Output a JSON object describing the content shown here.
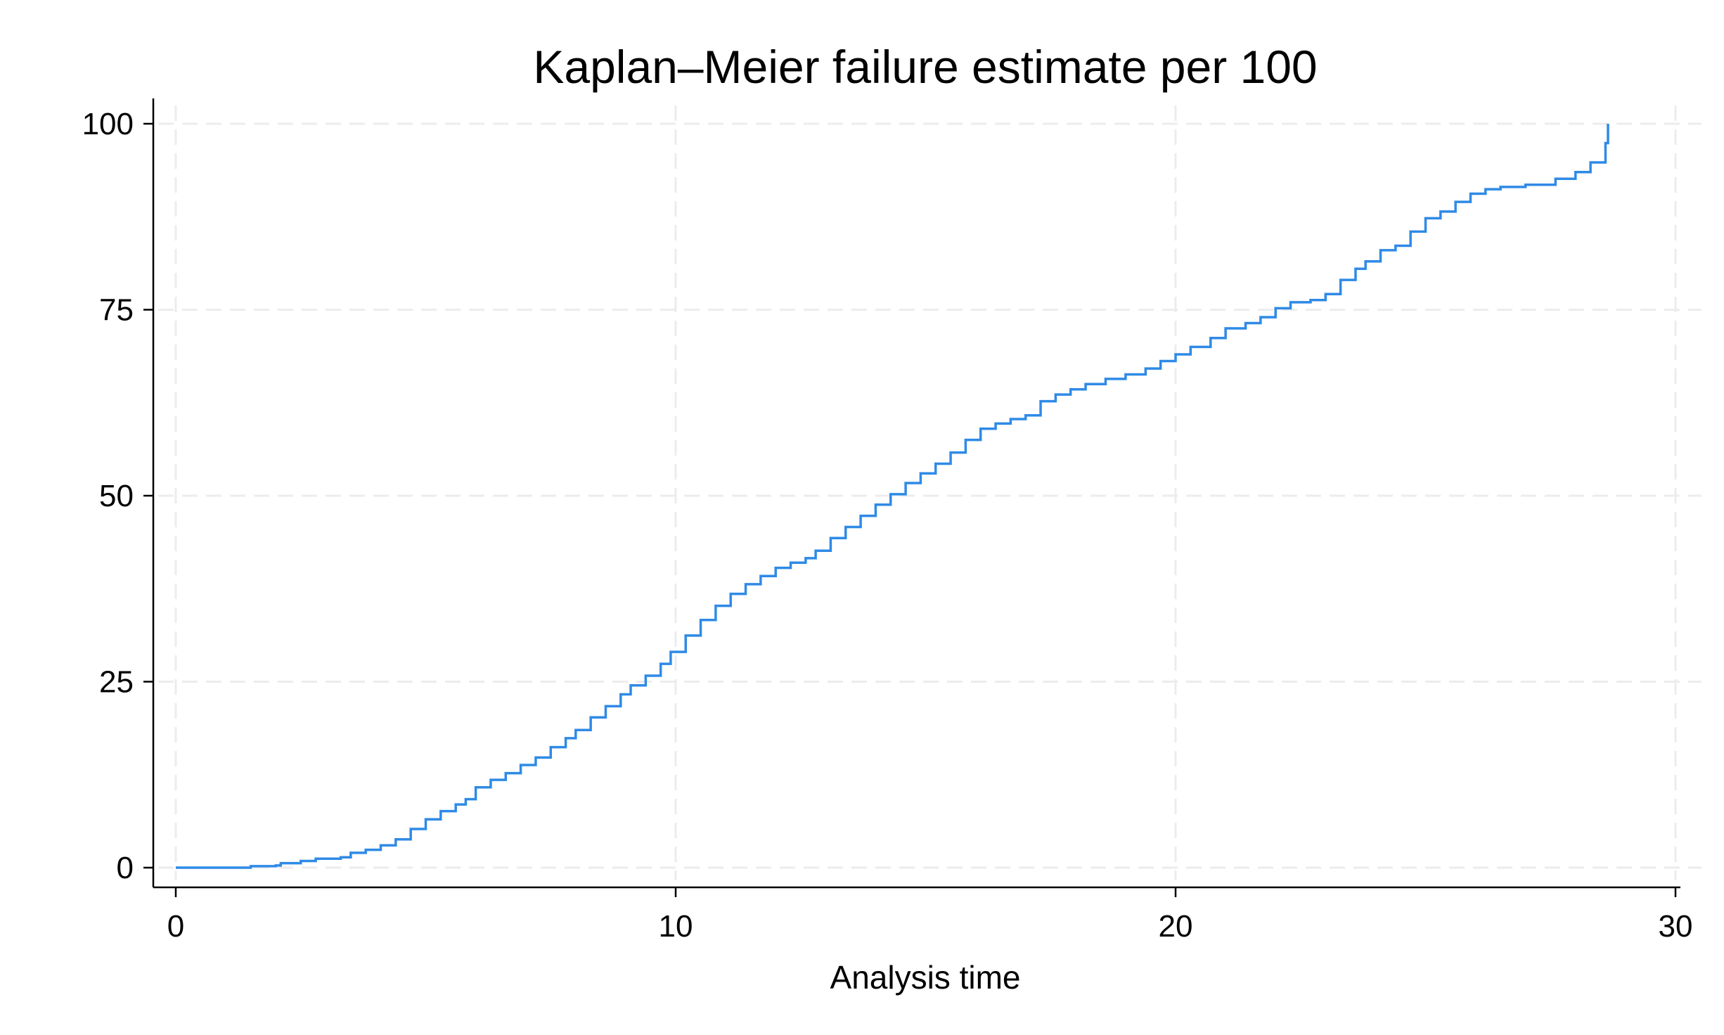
{
  "chart_data": {
    "type": "line",
    "title": "Kaplan–Meier failure estimate per 100",
    "xlabel": "Analysis time",
    "ylabel": "",
    "xlim": [
      0,
      30
    ],
    "ylim": [
      0,
      100
    ],
    "xticks": [
      0,
      10,
      20,
      30
    ],
    "yticks": [
      0,
      25,
      50,
      75,
      100
    ],
    "grid": true,
    "step": true,
    "colors": {
      "series": "#2f8ae6"
    },
    "series": [
      {
        "values": [
          [
            0,
            0
          ],
          [
            1.4,
            0
          ],
          [
            1.5,
            0.2
          ],
          [
            2.0,
            0.3
          ],
          [
            2.1,
            0.6
          ],
          [
            2.5,
            0.9
          ],
          [
            2.8,
            1.2
          ],
          [
            3.3,
            1.4
          ],
          [
            3.5,
            2.0
          ],
          [
            3.8,
            2.4
          ],
          [
            4.1,
            3.0
          ],
          [
            4.4,
            3.8
          ],
          [
            4.7,
            5.2
          ],
          [
            5.0,
            6.5
          ],
          [
            5.3,
            7.6
          ],
          [
            5.6,
            8.5
          ],
          [
            5.8,
            9.2
          ],
          [
            6.0,
            10.8
          ],
          [
            6.3,
            11.8
          ],
          [
            6.6,
            12.7
          ],
          [
            6.9,
            13.8
          ],
          [
            7.2,
            14.8
          ],
          [
            7.5,
            16.2
          ],
          [
            7.8,
            17.4
          ],
          [
            8.0,
            18.5
          ],
          [
            8.3,
            20.2
          ],
          [
            8.6,
            21.7
          ],
          [
            8.9,
            23.3
          ],
          [
            9.1,
            24.5
          ],
          [
            9.4,
            25.8
          ],
          [
            9.7,
            27.4
          ],
          [
            9.9,
            29.0
          ],
          [
            10.2,
            31.2
          ],
          [
            10.5,
            33.3
          ],
          [
            10.8,
            35.2
          ],
          [
            11.1,
            36.8
          ],
          [
            11.4,
            38.1
          ],
          [
            11.7,
            39.2
          ],
          [
            12.0,
            40.3
          ],
          [
            12.3,
            41.0
          ],
          [
            12.6,
            41.6
          ],
          [
            12.8,
            42.6
          ],
          [
            13.1,
            44.3
          ],
          [
            13.4,
            45.8
          ],
          [
            13.7,
            47.3
          ],
          [
            14.0,
            48.8
          ],
          [
            14.3,
            50.2
          ],
          [
            14.6,
            51.7
          ],
          [
            14.9,
            53.0
          ],
          [
            15.2,
            54.3
          ],
          [
            15.5,
            55.8
          ],
          [
            15.8,
            57.5
          ],
          [
            16.1,
            59.0
          ],
          [
            16.4,
            59.7
          ],
          [
            16.7,
            60.3
          ],
          [
            17.0,
            60.8
          ],
          [
            17.3,
            62.7
          ],
          [
            17.6,
            63.6
          ],
          [
            17.9,
            64.3
          ],
          [
            18.2,
            65.0
          ],
          [
            18.6,
            65.7
          ],
          [
            19.0,
            66.3
          ],
          [
            19.4,
            67.1
          ],
          [
            19.7,
            68.1
          ],
          [
            20.0,
            69.0
          ],
          [
            20.3,
            70.0
          ],
          [
            20.7,
            71.2
          ],
          [
            21.0,
            72.5
          ],
          [
            21.4,
            73.2
          ],
          [
            21.7,
            74.0
          ],
          [
            22.0,
            75.2
          ],
          [
            22.3,
            76.0
          ],
          [
            22.7,
            76.3
          ],
          [
            23.0,
            77.1
          ],
          [
            23.3,
            79.0
          ],
          [
            23.6,
            80.5
          ],
          [
            23.8,
            81.5
          ],
          [
            24.1,
            83.0
          ],
          [
            24.4,
            83.6
          ],
          [
            24.7,
            85.5
          ],
          [
            25.0,
            87.3
          ],
          [
            25.3,
            88.2
          ],
          [
            25.6,
            89.5
          ],
          [
            25.9,
            90.6
          ],
          [
            26.2,
            91.2
          ],
          [
            26.5,
            91.5
          ],
          [
            27.0,
            91.8
          ],
          [
            27.6,
            92.6
          ],
          [
            28.0,
            93.5
          ],
          [
            28.3,
            94.8
          ],
          [
            28.6,
            97.4
          ],
          [
            28.65,
            100
          ]
        ]
      }
    ]
  }
}
